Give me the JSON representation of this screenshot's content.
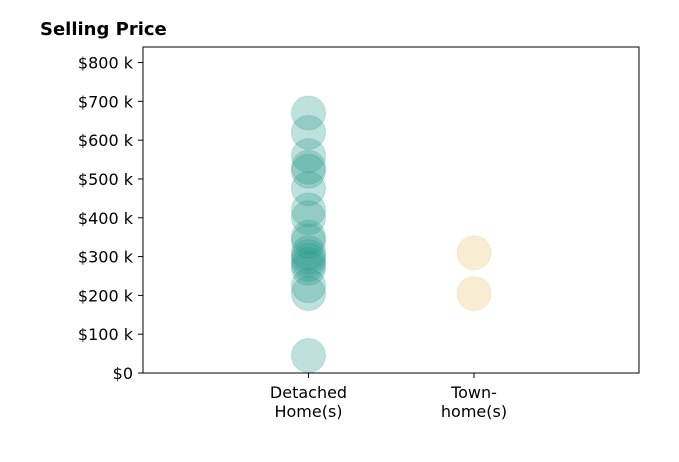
{
  "chart_data": {
    "type": "scatter",
    "title": "Selling Price",
    "categories": [
      "Detached\nHome(s)",
      "Town-\nhome(s)"
    ],
    "y_ticks": [
      "$0",
      "$100 k",
      "$200 k",
      "$300 k",
      "$400 k",
      "$500 k",
      "$600 k",
      "$700 k",
      "$800 k"
    ],
    "ylim": [
      0,
      840000
    ],
    "grid": false,
    "legend": "none",
    "series": [
      {
        "category": "Detached\nHome(s)",
        "color": "#2a9d8f",
        "opacity": 0.3,
        "values": [
          670000,
          620000,
          560000,
          530000,
          520000,
          475000,
          420000,
          400000,
          350000,
          340000,
          310000,
          300000,
          290000,
          280000,
          270000,
          225000,
          205000,
          45000
        ]
      },
      {
        "category": "Town-\nhome(s)",
        "color": "#e9c46a",
        "opacity": 0.3,
        "values": [
          310000,
          205000
        ]
      }
    ]
  }
}
